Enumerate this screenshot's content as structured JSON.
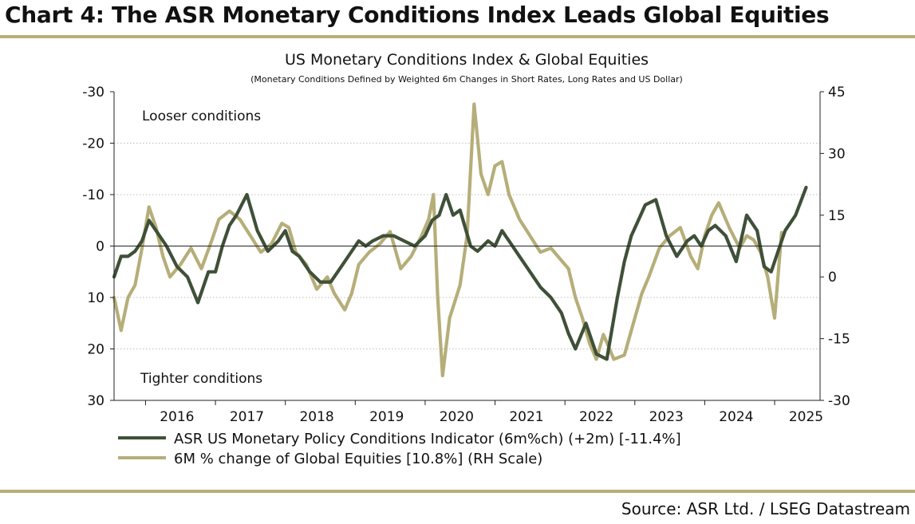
{
  "header": {
    "title": "Chart 4: The ASR Monetary Conditions Index Leads Global Equities",
    "source": "Source: ASR Ltd. / LSEG Datastream"
  },
  "colors": {
    "rule": "#b8ae77",
    "mci": "#3f5038",
    "equities": "#b6ae79",
    "grid": "#bdbdbd"
  },
  "chart_data": {
    "type": "line",
    "title": "US Monetary Conditions Index & Global Equities",
    "subtitle": "(Monetary Conditions Defined by Weighted 6m Changes in Short Rates, Long Rates and US Dollar)",
    "annotations": [
      "Looser conditions",
      "Tighter conditions"
    ],
    "left_axis": {
      "ylim": [
        -30,
        30
      ],
      "inverted": true,
      "ticks": [
        "-30",
        "-20",
        "-10",
        "0",
        "10",
        "20",
        "30"
      ],
      "tick_values": [
        -30,
        -20,
        -10,
        0,
        10,
        20,
        30
      ]
    },
    "right_axis": {
      "ylim": [
        -30,
        45
      ],
      "ticks": [
        "45",
        "30",
        "15",
        "0",
        "-15",
        "-30"
      ],
      "tick_values": [
        45,
        30,
        15,
        0,
        -15,
        -30
      ]
    },
    "x_axis": {
      "xlim": [
        2015.55,
        2025.65
      ],
      "tick_labels": [
        "2016",
        "2017",
        "2018",
        "2019",
        "2020",
        "2021",
        "2022",
        "2023",
        "2024",
        "2025"
      ],
      "label_positions": [
        2016.0,
        2017.0,
        2018.0,
        2019.0,
        2020.0,
        2021.0,
        2022.0,
        2023.0,
        2024.0,
        2025.0
      ]
    },
    "grid": true,
    "legend_position": "bottom",
    "series": [
      {
        "name": "ASR US Monetary Policy Conditions Indicator (6m%ch) (+2m)  [-11.4%]",
        "axis": "left",
        "x": [
          2015.55,
          2015.65,
          2015.75,
          2015.85,
          2015.95,
          2016.05,
          2016.15,
          2016.3,
          2016.45,
          2016.6,
          2016.75,
          2016.9,
          2017.0,
          2017.1,
          2017.2,
          2017.3,
          2017.45,
          2017.6,
          2017.75,
          2017.9,
          2018.0,
          2018.1,
          2018.2,
          2018.35,
          2018.5,
          2018.65,
          2018.8,
          2018.95,
          2019.05,
          2019.15,
          2019.25,
          2019.4,
          2019.55,
          2019.7,
          2019.85,
          2020.0,
          2020.1,
          2020.2,
          2020.3,
          2020.4,
          2020.5,
          2020.65,
          2020.75,
          2020.9,
          2021.0,
          2021.1,
          2021.2,
          2021.35,
          2021.5,
          2021.65,
          2021.8,
          2021.95,
          2022.05,
          2022.15,
          2022.3,
          2022.45,
          2022.6,
          2022.75,
          2022.85,
          2022.95,
          2023.05,
          2023.15,
          2023.3,
          2023.45,
          2023.6,
          2023.75,
          2023.85,
          2023.95,
          2024.05,
          2024.15,
          2024.3,
          2024.45,
          2024.6,
          2024.75,
          2024.85,
          2024.95,
          2025.05,
          2025.15,
          2025.3,
          2025.45
        ],
        "y": [
          6,
          2,
          2,
          1,
          -1,
          -5,
          -3,
          0,
          4,
          6,
          11,
          5,
          5,
          0,
          -4,
          -6,
          -10,
          -3,
          1,
          -1,
          -3,
          1,
          2,
          5,
          7,
          7,
          4,
          1,
          -1,
          0,
          -1,
          -2,
          -2,
          -1,
          0,
          -2,
          -5,
          -6,
          -10,
          -6,
          -7,
          0,
          1,
          -1,
          0,
          -3,
          -1,
          2,
          5,
          8,
          10,
          13,
          17,
          20,
          15,
          21,
          22,
          10,
          3,
          -2,
          -5,
          -8,
          -9,
          -2,
          2,
          -1,
          -2,
          0,
          -3,
          -4,
          -2,
          3,
          -6,
          -3,
          4,
          5,
          1,
          -3,
          -6,
          -11.4
        ]
      },
      {
        "name": "6M % change of Global Equities [10.8%] (RH Scale)",
        "axis": "right",
        "x": [
          2015.55,
          2015.65,
          2015.75,
          2015.85,
          2015.95,
          2016.05,
          2016.15,
          2016.25,
          2016.35,
          2016.5,
          2016.65,
          2016.8,
          2016.95,
          2017.05,
          2017.2,
          2017.35,
          2017.5,
          2017.65,
          2017.8,
          2017.95,
          2018.05,
          2018.15,
          2018.3,
          2018.45,
          2018.6,
          2018.7,
          2018.85,
          2018.95,
          2019.05,
          2019.2,
          2019.35,
          2019.5,
          2019.65,
          2019.8,
          2019.95,
          2020.05,
          2020.12,
          2020.18,
          2020.25,
          2020.35,
          2020.5,
          2020.6,
          2020.7,
          2020.8,
          2020.9,
          2021.0,
          2021.1,
          2021.2,
          2021.35,
          2021.5,
          2021.65,
          2021.8,
          2021.95,
          2022.05,
          2022.15,
          2022.25,
          2022.35,
          2022.45,
          2022.55,
          2022.7,
          2022.85,
          2023.0,
          2023.1,
          2023.2,
          2023.35,
          2023.5,
          2023.65,
          2023.8,
          2023.9,
          2024.0,
          2024.1,
          2024.2,
          2024.35,
          2024.5,
          2024.6,
          2024.7,
          2024.8,
          2024.9,
          2025.0,
          2025.1
        ],
        "y": [
          -5,
          -13,
          -5,
          -2,
          7,
          17,
          12,
          5,
          0,
          3,
          7,
          2,
          9,
          14,
          16,
          14,
          10,
          6,
          8,
          13,
          12,
          6,
          3,
          -3,
          0,
          -4,
          -8,
          -4,
          3,
          6,
          8,
          11,
          2,
          5,
          10,
          14,
          20,
          -5,
          -24,
          -10,
          -2,
          10,
          42,
          25,
          20,
          27,
          28,
          20,
          14,
          10,
          6,
          7,
          4,
          2,
          -5,
          -10,
          -16,
          -20,
          -14,
          -20,
          -19,
          -10,
          -4,
          0,
          7,
          10,
          12,
          5,
          2,
          10,
          15,
          18,
          12,
          7,
          10,
          9,
          6,
          0,
          -10,
          10.8
        ]
      }
    ]
  },
  "legend": {
    "mci_label": "ASR US Monetary Policy Conditions Indicator (6m%ch) (+2m)  [-11.4%]",
    "eq_label": "6M % change of Global Equities [10.8%] (RH Scale)"
  }
}
